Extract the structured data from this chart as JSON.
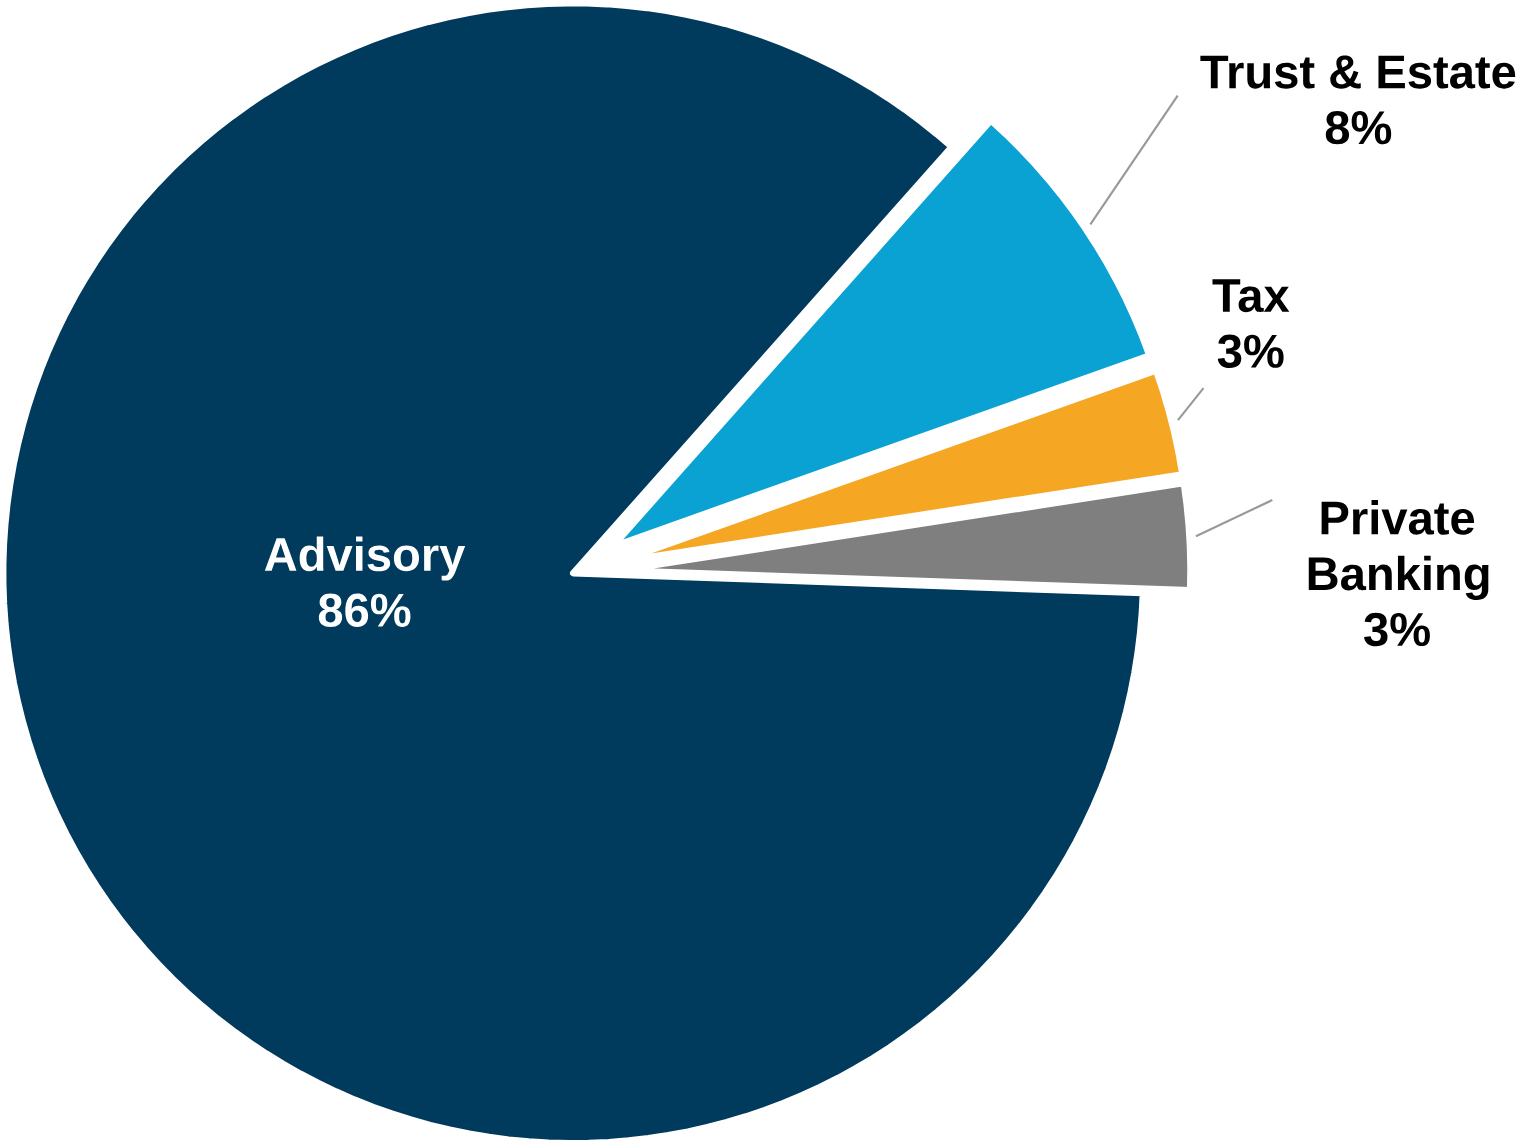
{
  "chart_data": {
    "type": "pie",
    "categories": [
      "Advisory",
      "Trust & Estate",
      "Tax",
      "Private Banking"
    ],
    "values": [
      86,
      8,
      3,
      3
    ],
    "colors": [
      "#003a5c",
      "#0aa2d2",
      "#f5a623",
      "#7f7f7f"
    ],
    "value_labels": [
      "86%",
      "8%",
      "3%",
      "3%"
    ]
  }
}
